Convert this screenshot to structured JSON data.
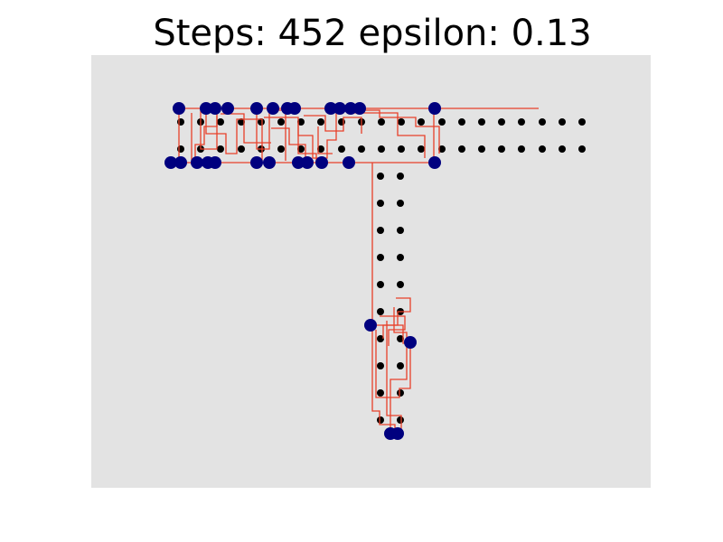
{
  "title": "Steps: 452 epsilon: 0.13",
  "colors": {
    "panel": "#e3e3e3",
    "track": "#000000",
    "hit": "#00007f",
    "path": "#e8402a"
  },
  "icons": {
    "track_marker": "black-dot",
    "hit_marker": "navy-circle"
  }
}
